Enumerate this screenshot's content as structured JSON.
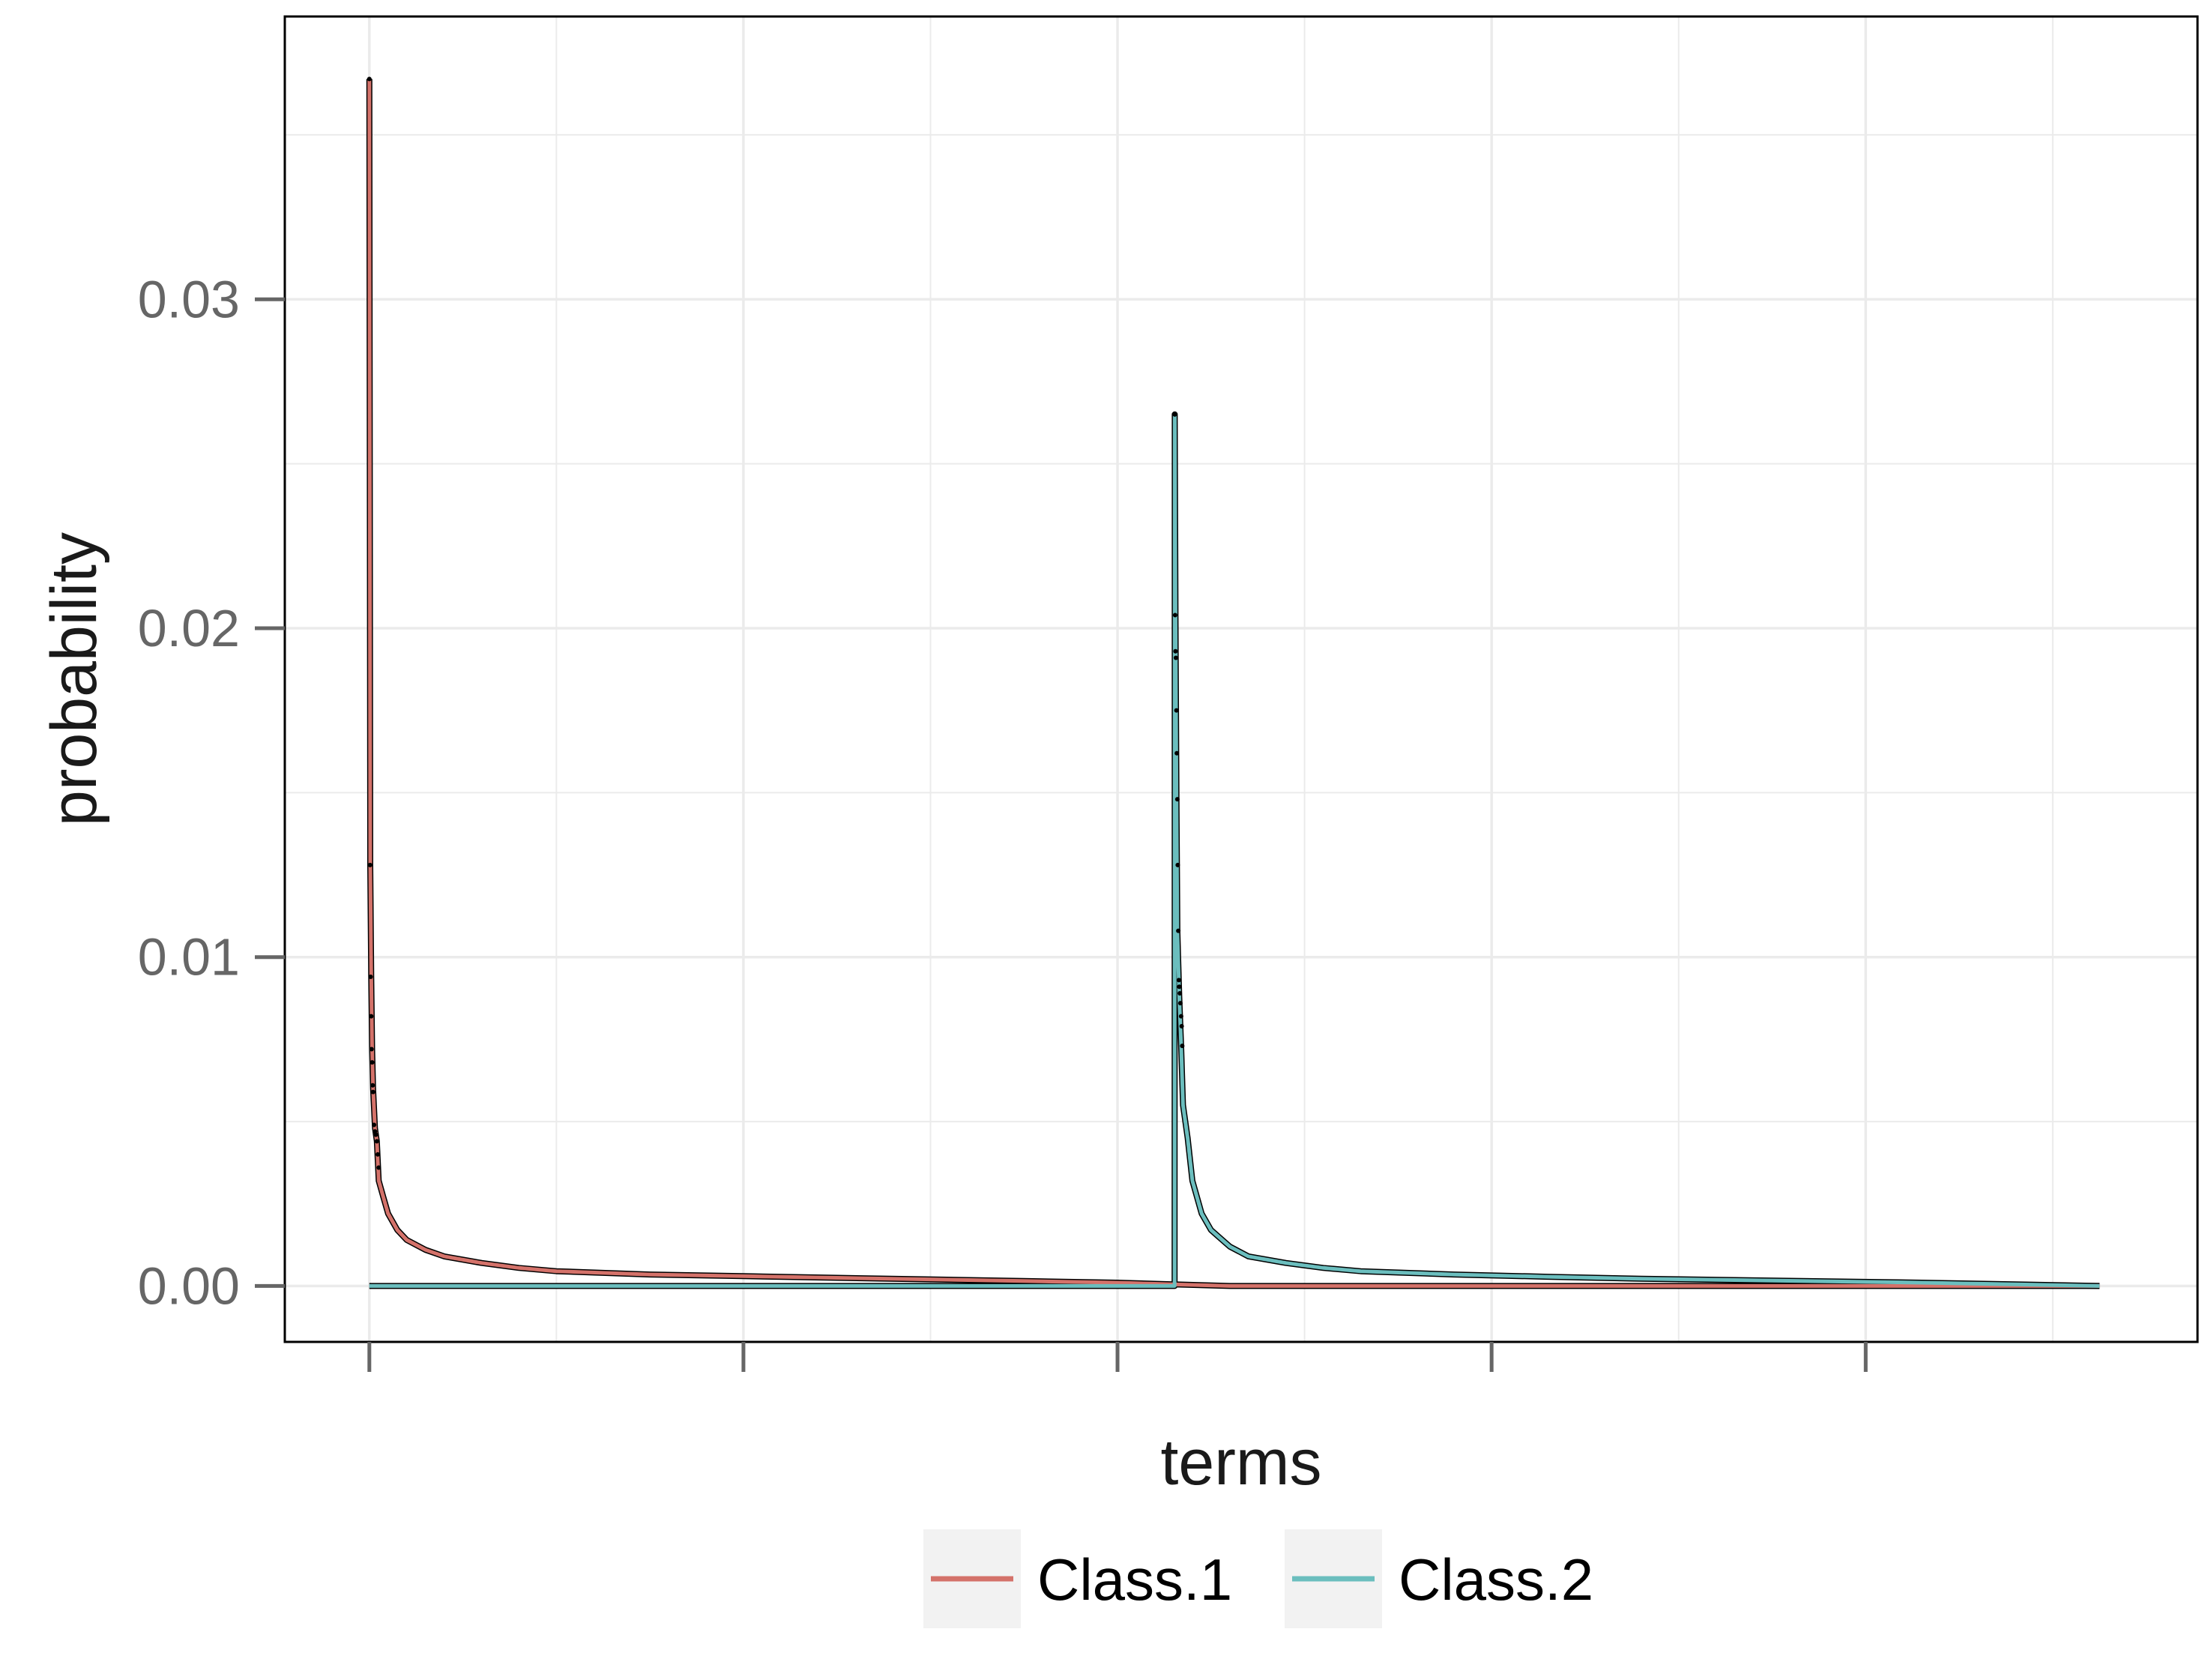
{
  "chart_data": {
    "type": "line",
    "title": "",
    "xlabel": "terms",
    "ylabel": "probability",
    "ylim": [
      -0.0017,
      0.0386
    ],
    "xlim": [
      -0.0452,
      0.9774
    ],
    "yticks": [
      0.0,
      0.01,
      0.02,
      0.03
    ],
    "ytick_labels": [
      "0.00",
      "0.01",
      "0.02",
      "0.03"
    ],
    "xticks": [
      0.0,
      0.2,
      0.4,
      0.6,
      0.8
    ],
    "xtick_labels": [
      "",
      "",
      "",
      "",
      ""
    ],
    "grid": true,
    "legend": {
      "position": "bottom",
      "entries": [
        "Class.1",
        "Class.2"
      ]
    },
    "colors": {
      "Class.1": "#D4726A",
      "Class.2": "#6BBEBE",
      "points": "#000000",
      "axis": "#000000",
      "grid": "#EBEBEB",
      "tick_label": "#666666",
      "legend_key_bg": "#F2F2F2"
    },
    "series": [
      {
        "name": "Class.1",
        "color": "#D4726A",
        "x": [
          0.0,
          0.0005,
          0.001,
          0.0015,
          0.002,
          0.003,
          0.004,
          0.005,
          0.0075,
          0.01,
          0.015,
          0.02,
          0.03,
          0.04,
          0.06,
          0.08,
          0.1,
          0.15,
          0.2,
          0.25,
          0.3,
          0.35,
          0.4,
          0.43,
          0.46,
          0.5,
          0.55,
          0.6,
          0.7,
          0.8,
          0.9,
          0.925
        ],
        "y": [
          0.0367,
          0.0128,
          0.0094,
          0.0072,
          0.006,
          0.0048,
          0.0044,
          0.0032,
          0.0027,
          0.0022,
          0.0017,
          0.0014,
          0.0011,
          0.0009,
          0.0007,
          0.00055,
          0.00045,
          0.00035,
          0.0003,
          0.00025,
          0.0002,
          0.00015,
          0.0001,
          5e-05,
          0.0,
          0.0,
          0.0,
          0.0,
          0.0,
          0.0,
          0.0,
          0.0
        ]
      },
      {
        "name": "Class.2",
        "color": "#6BBEBE",
        "x": [
          0.0,
          0.1,
          0.2,
          0.3,
          0.4,
          0.43,
          0.4305,
          0.4306,
          0.431,
          0.4315,
          0.432,
          0.433,
          0.434,
          0.435,
          0.4375,
          0.44,
          0.445,
          0.45,
          0.46,
          0.47,
          0.49,
          0.51,
          0.53,
          0.58,
          0.63,
          0.68,
          0.73,
          0.78,
          0.83,
          0.88,
          0.925
        ],
        "y": [
          0.0,
          0.0,
          0.0,
          0.0,
          0.0,
          0.0,
          0.0,
          0.0265,
          0.0204,
          0.0148,
          0.0108,
          0.0088,
          0.0073,
          0.0055,
          0.0045,
          0.0032,
          0.0022,
          0.0017,
          0.0012,
          0.0009,
          0.0007,
          0.00055,
          0.00045,
          0.00035,
          0.00028,
          0.00022,
          0.00018,
          0.00014,
          0.0001,
          5e-05,
          0.0
        ]
      }
    ],
    "points": {
      "x": [
        0.0,
        0.0004,
        0.0007,
        0.001,
        0.0012,
        0.0015,
        0.0018,
        0.002,
        0.0025,
        0.003,
        0.0035,
        0.004,
        0.0045,
        0.005,
        0.4306,
        0.4308,
        0.431,
        0.4312,
        0.4315,
        0.4317,
        0.432,
        0.4322,
        0.4325,
        0.4328,
        0.433,
        0.4333,
        0.4336,
        0.434,
        0.4343,
        0.4346
      ],
      "y": [
        0.0367,
        0.0128,
        0.0094,
        0.0082,
        0.0072,
        0.0068,
        0.0061,
        0.0059,
        0.0049,
        0.0047,
        0.0046,
        0.0044,
        0.004,
        0.0036,
        0.0265,
        0.0204,
        0.0193,
        0.0191,
        0.0175,
        0.0162,
        0.0148,
        0.0128,
        0.0108,
        0.0093,
        0.0091,
        0.0089,
        0.0086,
        0.0082,
        0.0079,
        0.0073
      ]
    }
  }
}
